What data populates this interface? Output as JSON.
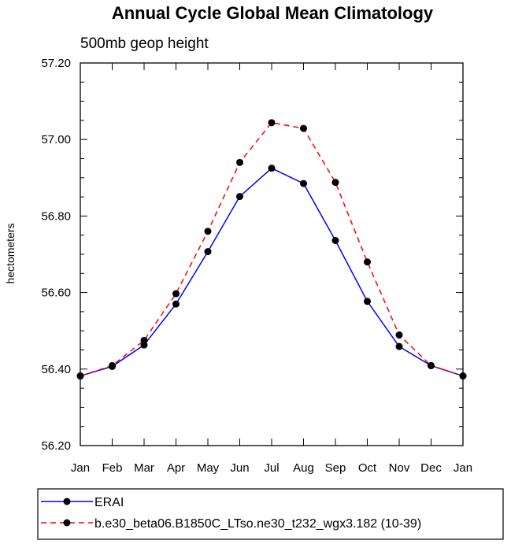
{
  "chart_data": {
    "type": "line",
    "title": "Annual Cycle Global Mean Climatology",
    "subtitle": "500mb geop height",
    "ylabel": "hectometers",
    "xlabel": "",
    "categories": [
      "Jan",
      "Feb",
      "Mar",
      "Apr",
      "May",
      "Jun",
      "Jul",
      "Aug",
      "Sep",
      "Oct",
      "Nov",
      "Dec",
      "Jan"
    ],
    "ylim": [
      56.2,
      57.2
    ],
    "y_ticks": [
      "56.20",
      "56.40",
      "56.60",
      "56.80",
      "57.00",
      "57.20"
    ],
    "series": [
      {
        "name": "ERAI",
        "color": "#0000ff",
        "dash": "solid",
        "values": [
          56.382,
          56.407,
          56.463,
          56.57,
          56.707,
          56.851,
          56.925,
          56.885,
          56.736,
          56.577,
          56.459,
          56.409,
          56.382
        ]
      },
      {
        "name": "b.e30_beta06.B1850C_LTso.ne30_t232_wgx3.182 (10-39)",
        "color": "#ff0000",
        "dash": "dashed",
        "values": [
          56.382,
          56.409,
          56.475,
          56.597,
          56.76,
          56.94,
          57.044,
          57.029,
          56.888,
          56.68,
          56.489,
          56.409,
          56.382
        ]
      }
    ],
    "grid": false,
    "legend_position": "bottom"
  }
}
